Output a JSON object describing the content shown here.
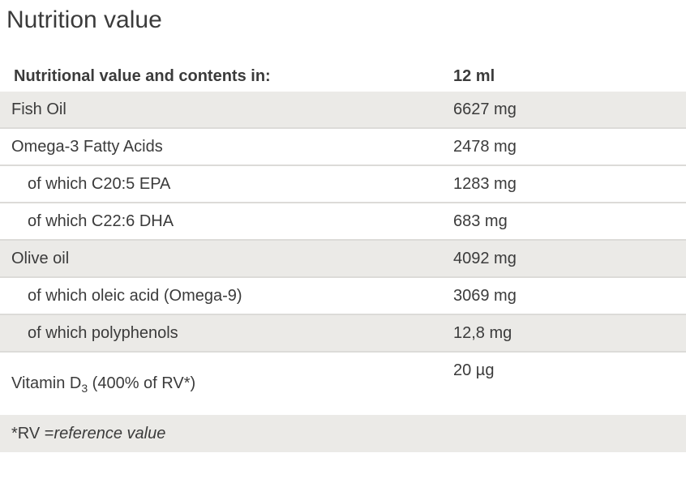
{
  "page": {
    "title": "Nutrition value"
  },
  "table": {
    "header": {
      "label": "Nutritional value and contents in:",
      "value": "12 ml"
    },
    "rows": [
      {
        "label": "Fish Oil",
        "value": "6627 mg",
        "shaded": true,
        "indented": false
      },
      {
        "label": "Omega-3 Fatty Acids",
        "value": "2478 mg",
        "shaded": false,
        "indented": false
      },
      {
        "label": "of which C20:5 EPA",
        "value": "1283 mg",
        "shaded": false,
        "indented": true
      },
      {
        "label": "of which C22:6 DHA",
        "value": "683 mg",
        "shaded": false,
        "indented": true
      },
      {
        "label": "Olive oil",
        "value": "4092 mg",
        "shaded": true,
        "indented": false
      },
      {
        "label": "of which oleic acid (Omega-9)",
        "value": "3069 mg",
        "shaded": false,
        "indented": true
      },
      {
        "label": "of which polyphenols",
        "value": "12,8 mg",
        "shaded": true,
        "indented": true
      },
      {
        "label_prefix": "Vitamin D",
        "label_subscript": "3",
        "label_suffix": " (400% of RV*)",
        "value": "20 µg",
        "shaded": false,
        "indented": false
      }
    ],
    "footnote": {
      "prefix": "*RV = ",
      "italic_text": "reference value"
    }
  },
  "colors": {
    "shaded_row": "#ebeae7",
    "row_border": "#dcdbd8",
    "text": "#3b3b3b",
    "background": "#ffffff"
  }
}
